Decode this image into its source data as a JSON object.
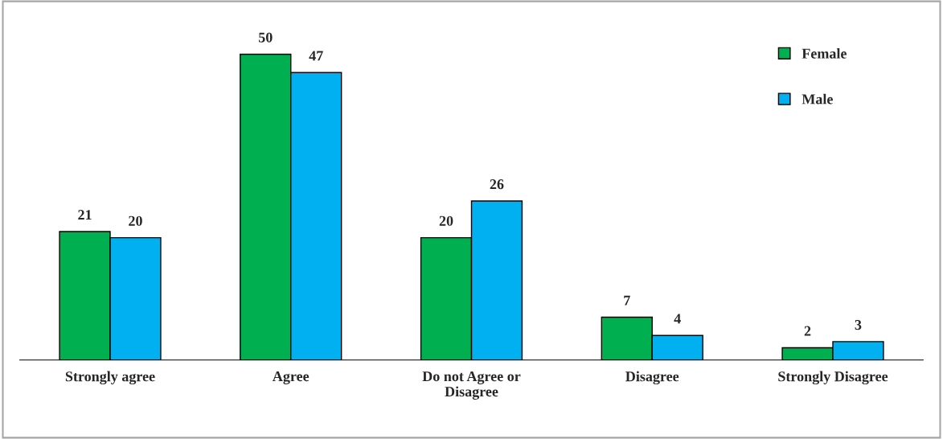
{
  "chart_data": {
    "type": "bar",
    "categories": [
      "Strongly agree",
      "Agree",
      "Do not Agree or\nDisagree",
      "Disagree",
      "Strongly Disagree"
    ],
    "series": [
      {
        "name": "Female",
        "color": "#00b050",
        "values": [
          21,
          50,
          20,
          7,
          2
        ]
      },
      {
        "name": "Male",
        "color": "#00b0f0",
        "values": [
          20,
          47,
          26,
          4,
          3
        ]
      }
    ],
    "data_labels": true,
    "legend": "top right",
    "grid": false
  }
}
